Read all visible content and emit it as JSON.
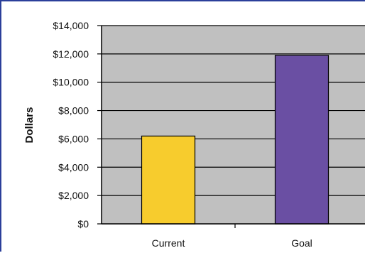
{
  "chart_data": {
    "type": "bar",
    "title": "",
    "xlabel": "",
    "ylabel": "Dollars",
    "categories": [
      "Current",
      "Goal"
    ],
    "values": [
      6200,
      11900
    ],
    "ylim": [
      0,
      14000
    ],
    "yticks": [
      0,
      2000,
      4000,
      6000,
      8000,
      10000,
      12000,
      14000
    ],
    "ytick_labels": [
      "$0",
      "$2,000",
      "$4,000",
      "$6,000",
      "$8,000",
      "$10,000",
      "$12,000",
      "$14,000"
    ],
    "bar_colors": [
      "#f7cc2d",
      "#6a4fa3"
    ],
    "plot_background": "#c0c0c0",
    "grid": true,
    "legend": "none"
  }
}
